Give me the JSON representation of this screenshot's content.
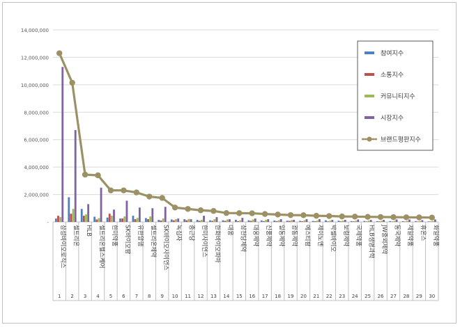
{
  "chart_data": {
    "type": "bar",
    "y_ticks": [
      "14,000,000",
      "12,000,000",
      "10,000,000",
      "8,000,000",
      "6,000,000",
      "4,000,000",
      "2,000,000",
      "-"
    ],
    "ylim": [
      0,
      14000000
    ],
    "grid": true,
    "legend_position": "right",
    "categories": [
      {
        "rank": "1",
        "name": "삼성바이오로직스"
      },
      {
        "rank": "2",
        "name": "셀트리온"
      },
      {
        "rank": "3",
        "name": "HLB"
      },
      {
        "rank": "4",
        "name": "셀트리온헬스케어"
      },
      {
        "rank": "5",
        "name": "한미약품"
      },
      {
        "rank": "6",
        "name": "SK바이오팜"
      },
      {
        "rank": "7",
        "name": "유한양행"
      },
      {
        "rank": "8",
        "name": "셀트리온제약"
      },
      {
        "rank": "9",
        "name": "SK바이오사이언스"
      },
      {
        "rank": "10",
        "name": "녹십자"
      },
      {
        "rank": "11",
        "name": "종근당"
      },
      {
        "rank": "12",
        "name": "한미사이언스"
      },
      {
        "rank": "13",
        "name": "한화바이오파마"
      },
      {
        "rank": "14",
        "name": "대웅"
      },
      {
        "rank": "15",
        "name": "삼천당제약"
      },
      {
        "rank": "16",
        "name": "대웅제약"
      },
      {
        "rank": "17",
        "name": "신풍제약"
      },
      {
        "rank": "18",
        "name": "일동제약"
      },
      {
        "rank": "19",
        "name": "광동제약"
      },
      {
        "rank": "20",
        "name": "에스티팜"
      },
      {
        "rank": "21",
        "name": "제이노엔"
      },
      {
        "rank": "22",
        "name": "박셀바이오"
      },
      {
        "rank": "23",
        "name": "보령제약"
      },
      {
        "rank": "24",
        "name": "국제약품"
      },
      {
        "rank": "25",
        "name": "HLB생명과학"
      },
      {
        "rank": "26",
        "name": "JW중외제약"
      },
      {
        "rank": "27",
        "name": "동국제약"
      },
      {
        "rank": "28",
        "name": "제일약품"
      },
      {
        "rank": "29",
        "name": "휴온스"
      },
      {
        "rank": "30",
        "name": "화일약품"
      }
    ],
    "series": [
      {
        "name": "참여지수",
        "type": "bar",
        "color": "#4f81bd",
        "values": [
          250000,
          1800000,
          950000,
          380000,
          320000,
          250000,
          450000,
          280000,
          150000,
          180000,
          200000,
          150000,
          120000,
          120000,
          160000,
          120000,
          110000,
          100000,
          90000,
          80000,
          70000,
          120000,
          90000,
          60000,
          70000,
          60000,
          60000,
          50000,
          60000,
          40000
        ]
      },
      {
        "name": "소통지수",
        "type": "bar",
        "color": "#c0504d",
        "values": [
          450000,
          600000,
          450000,
          180000,
          600000,
          250000,
          200000,
          200000,
          100000,
          120000,
          120000,
          80000,
          80000,
          80000,
          60000,
          80000,
          60000,
          60000,
          70000,
          50000,
          50000,
          40000,
          40000,
          40000,
          30000,
          40000,
          30000,
          30000,
          30000,
          30000
        ]
      },
      {
        "name": "커뮤니티지수",
        "type": "bar",
        "color": "#9bbb59",
        "values": [
          350000,
          950000,
          550000,
          280000,
          450000,
          400000,
          300000,
          400000,
          250000,
          200000,
          220000,
          150000,
          200000,
          180000,
          120000,
          180000,
          140000,
          120000,
          130000,
          120000,
          110000,
          90000,
          100000,
          90000,
          100000,
          90000,
          80000,
          90000,
          80000,
          70000
        ]
      },
      {
        "name": "시장지수",
        "type": "bar",
        "color": "#8064a2",
        "values": [
          11300000,
          6700000,
          1300000,
          2500000,
          900000,
          1550000,
          1050000,
          1000000,
          1100000,
          250000,
          200000,
          450000,
          350000,
          200000,
          300000,
          250000,
          200000,
          200000,
          150000,
          200000,
          200000,
          150000,
          150000,
          180000,
          150000,
          150000,
          180000,
          180000,
          130000,
          180000
        ]
      },
      {
        "name": "브랜드평판지수",
        "type": "line",
        "color": "#9c9165",
        "values": [
          12300000,
          10150000,
          3450000,
          3400000,
          2300000,
          2300000,
          2150000,
          1850000,
          1750000,
          1050000,
          950000,
          850000,
          800000,
          650000,
          640000,
          630000,
          580000,
          540000,
          500000,
          490000,
          450000,
          430000,
          400000,
          390000,
          370000,
          360000,
          350000,
          340000,
          330000,
          320000
        ]
      }
    ]
  }
}
